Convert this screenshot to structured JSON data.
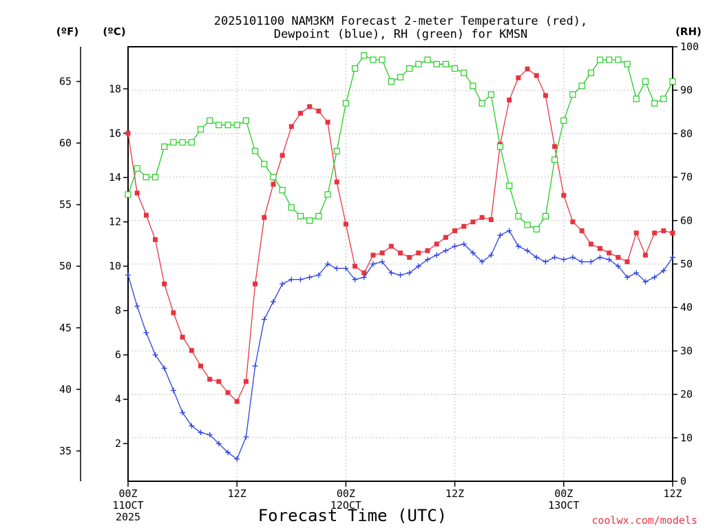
{
  "chart_data": {
    "type": "line",
    "title_lines": [
      "2025101100 NAM3KM Forecast 2-meter Temperature (red),",
      "Dewpoint (blue), RH (green) for KMSN"
    ],
    "xlabel": "Forecast Time (UTC)",
    "credit": "coolwx.com/models",
    "units": {
      "fahrenheit": "(ºF)",
      "celsius": "(ºC)",
      "rh": "(RH)"
    },
    "x_range_hours": [
      0,
      60
    ],
    "x_ticks": [
      {
        "hour": 0,
        "lines": [
          "00Z",
          "11OCT",
          "2025"
        ]
      },
      {
        "hour": 12,
        "lines": [
          "12Z"
        ]
      },
      {
        "hour": 24,
        "lines": [
          "00Z",
          "12OCT"
        ]
      },
      {
        "hour": 36,
        "lines": [
          "12Z"
        ]
      },
      {
        "hour": 48,
        "lines": [
          "00Z",
          "13OCT"
        ]
      },
      {
        "hour": 60,
        "lines": [
          "12Z"
        ]
      }
    ],
    "celsius_axis": {
      "range": [
        0.3,
        19.9
      ],
      "ticks": [
        "2",
        "4",
        "6",
        "8",
        "10",
        "12",
        "14",
        "16",
        "18"
      ]
    },
    "fahrenheit_axis": {
      "ticks": [
        "35",
        "40",
        "45",
        "50",
        "55",
        "60",
        "65"
      ]
    },
    "rh_axis": {
      "range": [
        0,
        100
      ],
      "ticks": [
        "0",
        "10",
        "20",
        "30",
        "40",
        "50",
        "60",
        "70",
        "80",
        "90",
        "100"
      ]
    },
    "x_hours": [
      0,
      1,
      2,
      3,
      4,
      5,
      6,
      7,
      8,
      9,
      10,
      11,
      12,
      13,
      14,
      15,
      16,
      17,
      18,
      19,
      20,
      21,
      22,
      23,
      24,
      25,
      26,
      27,
      28,
      29,
      30,
      31,
      32,
      33,
      34,
      35,
      36,
      37,
      38,
      39,
      40,
      41,
      42,
      43,
      44,
      45,
      46,
      47,
      48,
      49,
      50,
      51,
      52,
      53,
      54,
      55,
      56,
      57,
      58,
      59,
      60
    ],
    "series": [
      {
        "name": "2-meter Temperature",
        "color": "#e8333f",
        "axis": "celsius",
        "marker": "filled-square",
        "values": [
          16.0,
          13.3,
          12.3,
          11.2,
          9.2,
          7.9,
          6.8,
          6.2,
          5.5,
          4.9,
          4.8,
          4.3,
          3.9,
          4.8,
          9.2,
          12.2,
          13.7,
          15.0,
          16.3,
          16.9,
          17.2,
          17.0,
          16.5,
          13.8,
          11.9,
          10.0,
          9.7,
          10.5,
          10.6,
          10.9,
          10.6,
          10.4,
          10.6,
          10.7,
          11.0,
          11.3,
          11.6,
          11.8,
          12.0,
          12.2,
          12.1,
          15.5,
          17.5,
          18.5,
          18.9,
          18.6,
          17.7,
          15.4,
          13.2,
          12.0,
          11.6,
          11.0,
          10.8,
          10.6,
          10.4,
          10.2,
          11.5,
          10.5,
          11.5,
          11.6,
          11.5
        ]
      },
      {
        "name": "Dewpoint",
        "color": "#2a3fe0",
        "axis": "celsius",
        "marker": "plus",
        "values": [
          9.6,
          8.2,
          7.0,
          6.0,
          5.4,
          4.4,
          3.4,
          2.8,
          2.5,
          2.4,
          2.0,
          1.6,
          1.3,
          2.3,
          5.5,
          7.6,
          8.4,
          9.2,
          9.4,
          9.4,
          9.5,
          9.6,
          10.1,
          9.9,
          9.9,
          9.4,
          9.5,
          10.1,
          10.2,
          9.7,
          9.6,
          9.7,
          10.0,
          10.3,
          10.5,
          10.7,
          10.9,
          11.0,
          10.6,
          10.2,
          10.5,
          11.4,
          11.6,
          10.9,
          10.7,
          10.4,
          10.2,
          10.4,
          10.3,
          10.4,
          10.2,
          10.2,
          10.4,
          10.3,
          10.0,
          9.5,
          9.7,
          9.3,
          9.5,
          9.8,
          10.4
        ]
      },
      {
        "name": "RH",
        "color": "#22cc22",
        "axis": "rh",
        "marker": "open-square",
        "values": [
          66,
          72,
          70,
          70,
          77,
          78,
          78,
          78,
          81,
          83,
          82,
          82,
          82,
          83,
          76,
          73,
          70,
          67,
          63,
          61,
          60,
          61,
          66,
          76,
          87,
          95,
          98,
          97,
          97,
          92,
          93,
          95,
          96,
          97,
          96,
          96,
          95,
          94,
          91,
          87,
          89,
          77,
          68,
          61,
          59,
          58,
          61,
          74,
          83,
          89,
          91,
          94,
          97,
          97,
          97,
          96,
          88,
          92,
          87,
          88,
          92
        ]
      }
    ]
  }
}
